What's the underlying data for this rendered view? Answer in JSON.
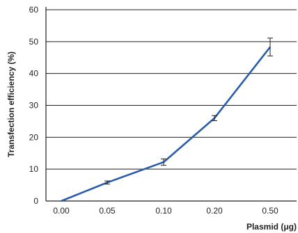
{
  "chart_data": {
    "type": "line",
    "categories": [
      "0.00",
      "0.05",
      "0.10",
      "0.20",
      "0.50"
    ],
    "series": [
      {
        "values": [
          0,
          5.8,
          12.2,
          26,
          48.3
        ],
        "error": [
          0,
          0.5,
          1,
          0.8,
          2.8
        ],
        "color": "#2a5caa"
      }
    ],
    "xlabel": "Plasmid (μg)",
    "ylabel": "Transfection efficiency (%)",
    "ylim": [
      0,
      60
    ],
    "yticks": [
      0,
      10,
      20,
      30,
      40,
      50,
      60
    ],
    "grid": true,
    "legend": "none",
    "colors": {
      "axis": "#231f20",
      "grid": "#231f20"
    }
  }
}
